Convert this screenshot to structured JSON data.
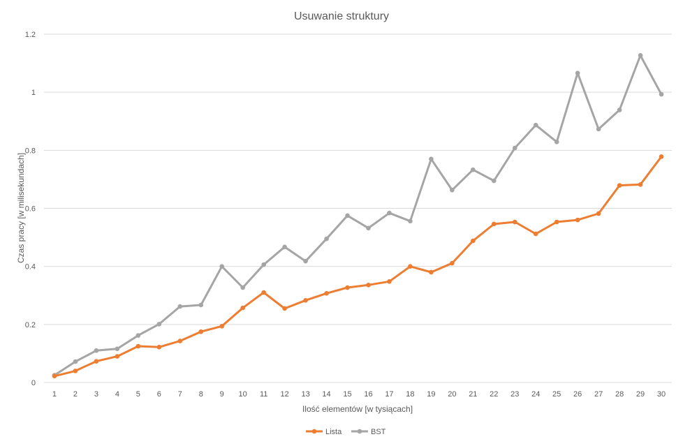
{
  "chart_data": {
    "type": "line",
    "title": "Usuwanie struktury",
    "xlabel": "Ilość elementów [w tysiącach]",
    "ylabel": "Czas pracy [w milisekundach]",
    "categories": [
      "1",
      "2",
      "3",
      "4",
      "5",
      "6",
      "7",
      "8",
      "9",
      "10",
      "11",
      "12",
      "13",
      "14",
      "15",
      "16",
      "17",
      "18",
      "19",
      "20",
      "21",
      "22",
      "23",
      "24",
      "25",
      "26",
      "27",
      "28",
      "29",
      "30"
    ],
    "ylim": [
      0,
      1.2
    ],
    "yticks": [
      "0",
      "0.2",
      "0.4",
      "0.6",
      "0.8",
      "1",
      "1.2"
    ],
    "grid": true,
    "legend_position": "bottom",
    "series": [
      {
        "name": "Lista",
        "color": "#ed7d31",
        "values": [
          0.022,
          0.04,
          0.073,
          0.09,
          0.125,
          0.122,
          0.143,
          0.175,
          0.194,
          0.257,
          0.31,
          0.255,
          0.283,
          0.307,
          0.327,
          0.336,
          0.348,
          0.4,
          0.38,
          0.411,
          0.488,
          0.546,
          0.553,
          0.512,
          0.553,
          0.56,
          0.582,
          0.679,
          0.682,
          0.778
        ]
      },
      {
        "name": "BST",
        "color": "#a5a5a5",
        "values": [
          0.025,
          0.072,
          0.11,
          0.116,
          0.162,
          0.201,
          0.262,
          0.267,
          0.4,
          0.327,
          0.406,
          0.467,
          0.418,
          0.495,
          0.575,
          0.532,
          0.584,
          0.556,
          0.77,
          0.663,
          0.733,
          0.695,
          0.808,
          0.887,
          0.829,
          1.066,
          0.873,
          0.939,
          1.127,
          0.993
        ]
      }
    ]
  }
}
